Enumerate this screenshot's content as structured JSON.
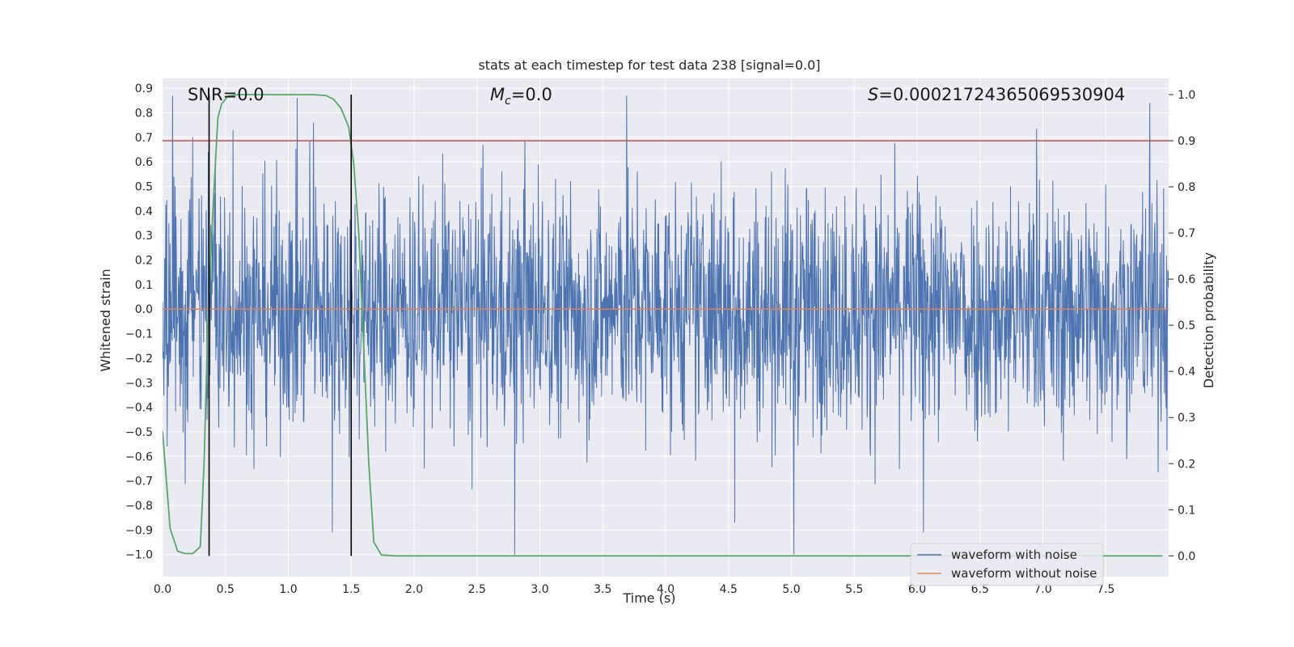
{
  "chart_data": {
    "type": "line",
    "title": "stats at each timestep for test data 238 [signal=0.0]",
    "xlabel": "Time (s)",
    "ylabel": "Whitened strain",
    "y2label": "Detection probability",
    "xlim": [
      0.0,
      8.0
    ],
    "ylim": [
      -1.09,
      0.94
    ],
    "y2lim": [
      -0.045,
      1.035
    ],
    "xticks": [
      "0.0",
      "0.5",
      "1.0",
      "1.5",
      "2.0",
      "2.5",
      "3.0",
      "3.5",
      "4.0",
      "4.5",
      "5.0",
      "5.5",
      "6.0",
      "6.5",
      "7.0",
      "7.5"
    ],
    "xtick_values": [
      0.0,
      0.5,
      1.0,
      1.5,
      2.0,
      2.5,
      3.0,
      3.5,
      4.0,
      4.5,
      5.0,
      5.5,
      6.0,
      6.5,
      7.0,
      7.5
    ],
    "yticks": [
      "0.9",
      "0.8",
      "0.7",
      "0.6",
      "0.5",
      "0.4",
      "0.3",
      "0.2",
      "0.1",
      "0.0",
      "−0.1",
      "−0.2",
      "−0.3",
      "−0.4",
      "−0.5",
      "−0.6",
      "−0.7",
      "−0.8",
      "−0.9",
      "−1.0"
    ],
    "ytick_values": [
      0.9,
      0.8,
      0.7,
      0.6,
      0.5,
      0.4,
      0.3,
      0.2,
      0.1,
      0.0,
      -0.1,
      -0.2,
      -0.3,
      -0.4,
      -0.5,
      -0.6,
      -0.7,
      -0.8,
      -0.9,
      -1.0
    ],
    "y2ticks": [
      "1.0",
      "0.9",
      "0.8",
      "0.7",
      "0.6",
      "0.5",
      "0.4",
      "0.3",
      "0.2",
      "0.1",
      "0.0"
    ],
    "y2tick_values": [
      1.0,
      0.9,
      0.8,
      0.7,
      0.6,
      0.5,
      0.4,
      0.3,
      0.2,
      0.1,
      0.0
    ],
    "grid": true,
    "legend_position": "bottom-right",
    "annotations": {
      "snr": "SNR=0.0",
      "mc_symbol": "M",
      "mc_subscript": "c",
      "mc_value": "=0.0",
      "s_symbol": "S",
      "s_value": "=0.00021724365069530904"
    },
    "vlines": [
      0.37,
      1.5
    ],
    "threshold_probability": 0.9,
    "series": [
      {
        "name": "waveform with noise",
        "color": "#4c72b0",
        "style": "dense noise, roughly ±0.45 with spikes",
        "amplitude_envelope": [
          0.45,
          -0.45
        ],
        "notable_peaks": [
          {
            "x": 0.08,
            "y": 0.87
          },
          {
            "x": 0.24,
            "y": 0.7
          },
          {
            "x": 0.56,
            "y": 0.73
          },
          {
            "x": 1.2,
            "y": 0.76
          },
          {
            "x": 3.69,
            "y": 0.87
          },
          {
            "x": 2.8,
            "y": -1.0
          },
          {
            "x": 5.02,
            "y": -1.0
          },
          {
            "x": 6.05,
            "y": -0.91
          },
          {
            "x": 1.35,
            "y": -0.91
          },
          {
            "x": 4.55,
            "y": -0.87
          },
          {
            "x": 7.85,
            "y": 0.84
          }
        ]
      },
      {
        "name": "waveform without noise",
        "color": "#dd8452",
        "x": [
          0.0,
          8.0
        ],
        "y": [
          0.0,
          0.0
        ]
      },
      {
        "name": "",
        "axis": "right",
        "color": "#55a868",
        "x": [
          0.0,
          0.06,
          0.12,
          0.18,
          0.24,
          0.3,
          0.33,
          0.36,
          0.4,
          0.44,
          0.47,
          0.52,
          0.6,
          0.8,
          1.0,
          1.2,
          1.3,
          1.36,
          1.42,
          1.48,
          1.52,
          1.56,
          1.6,
          1.64,
          1.68,
          1.74,
          1.85,
          2.5,
          4.0,
          6.0,
          7.95
        ],
        "y": [
          0.27,
          0.06,
          0.01,
          0.005,
          0.005,
          0.02,
          0.2,
          0.5,
          0.75,
          0.95,
          0.98,
          0.997,
          1.0,
          1.0,
          1.0,
          1.0,
          0.998,
          0.99,
          0.97,
          0.93,
          0.85,
          0.7,
          0.45,
          0.2,
          0.03,
          0.002,
          0.0,
          0.0,
          0.0,
          0.0,
          0.0
        ]
      }
    ],
    "colors": {
      "background": "#eaeaf2",
      "grid": "#ffffff",
      "threshold": "#c44e52",
      "vline": "#000000"
    }
  },
  "legend": {
    "items": [
      {
        "label": "waveform with noise",
        "color": "#4c72b0"
      },
      {
        "label": "waveform without noise",
        "color": "#dd8452"
      }
    ]
  }
}
